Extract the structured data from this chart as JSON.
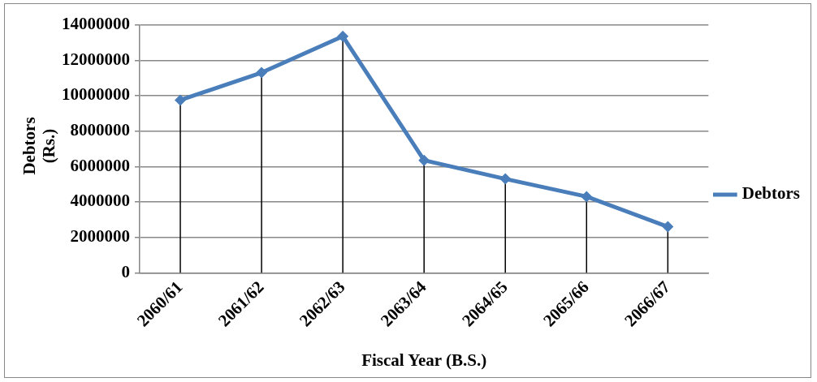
{
  "chart_data": {
    "type": "line",
    "xlabel": "Fiscal Year (B.S.)",
    "ylabel": "Debtors (Rs.)",
    "categories": [
      "2060/61",
      "2061/62",
      "2062/63",
      "2063/64",
      "2064/65",
      "2065/66",
      "2066/67"
    ],
    "series": [
      {
        "name": "Debtors",
        "color": "#4a7ebb",
        "values": [
          9750000,
          11300000,
          13350000,
          6350000,
          5300000,
          4300000,
          2600000
        ],
        "errors": [
          [
            0,
            9750000
          ],
          [
            0,
            11300000
          ],
          [
            0,
            13350000
          ],
          [
            0,
            6350000
          ],
          [
            0,
            5300000
          ],
          [
            0,
            4300000
          ],
          [
            0,
            2600000
          ]
        ]
      }
    ],
    "ylim": [
      0,
      14000000
    ],
    "yticks": [
      0,
      2000000,
      4000000,
      6000000,
      8000000,
      10000000,
      12000000,
      14000000
    ],
    "grid": "y",
    "legend": "right",
    "marker": "diamond",
    "line_style": "solid"
  }
}
